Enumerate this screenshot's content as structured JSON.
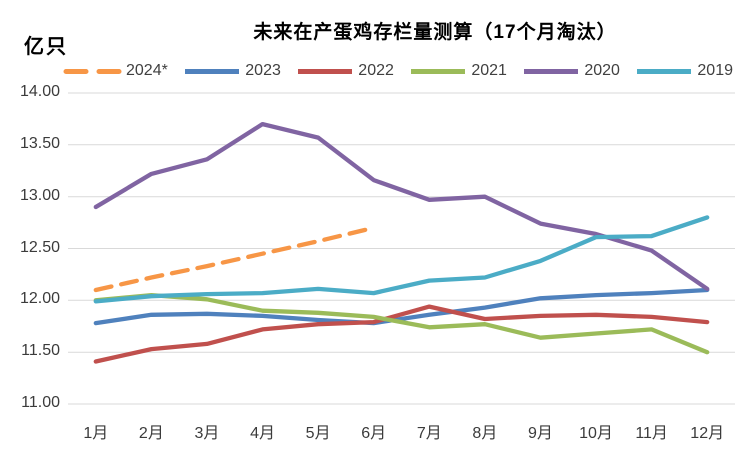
{
  "chart_data": {
    "type": "line",
    "title": "未来在产蛋鸡存栏量测算（17个月淘汰）",
    "unit_label": "亿只",
    "categories": [
      "1月",
      "2月",
      "3月",
      "4月",
      "5月",
      "6月",
      "7月",
      "8月",
      "9月",
      "10月",
      "11月",
      "12月"
    ],
    "y_axis": {
      "min": 11.0,
      "max": 14.0,
      "step": 0.5,
      "tick_labels": [
        "14.00",
        "13.50",
        "13.00",
        "12.50",
        "12.00",
        "11.50",
        "11.00"
      ]
    },
    "grid": true,
    "legend_position": "top",
    "colors": {
      "grid": "#d9d9d9",
      "axis_text": "#3b3b3b",
      "legend_text": "#404040",
      "background": "#ffffff"
    },
    "series": [
      {
        "name": "2024*",
        "color": "#F79646",
        "dashed": true,
        "values": [
          12.1,
          12.22,
          12.33,
          12.45,
          12.57,
          12.7,
          null,
          null,
          null,
          null,
          null,
          null
        ]
      },
      {
        "name": "2023",
        "color": "#4F81BD",
        "dashed": false,
        "values": [
          11.78,
          11.86,
          11.87,
          11.85,
          11.81,
          11.78,
          11.86,
          11.93,
          12.02,
          12.05,
          12.07,
          12.1
        ]
      },
      {
        "name": "2022",
        "color": "#C0504D",
        "dashed": false,
        "values": [
          11.41,
          11.53,
          11.58,
          11.72,
          11.77,
          11.79,
          11.94,
          11.82,
          11.85,
          11.86,
          11.84,
          11.79
        ]
      },
      {
        "name": "2021",
        "color": "#9BBB59",
        "dashed": false,
        "values": [
          12.0,
          12.05,
          12.01,
          11.9,
          11.88,
          11.84,
          11.74,
          11.77,
          11.64,
          11.68,
          11.72,
          11.5
        ]
      },
      {
        "name": "2020",
        "color": "#8064A2",
        "dashed": false,
        "values": [
          12.9,
          13.22,
          13.36,
          13.7,
          13.57,
          13.16,
          12.97,
          13.0,
          12.74,
          12.64,
          12.48,
          12.11
        ]
      },
      {
        "name": "2019",
        "color": "#4BACC6",
        "dashed": false,
        "values": [
          11.99,
          12.04,
          12.06,
          12.07,
          12.11,
          12.07,
          12.19,
          12.22,
          12.38,
          12.61,
          12.62,
          12.8
        ]
      }
    ]
  }
}
